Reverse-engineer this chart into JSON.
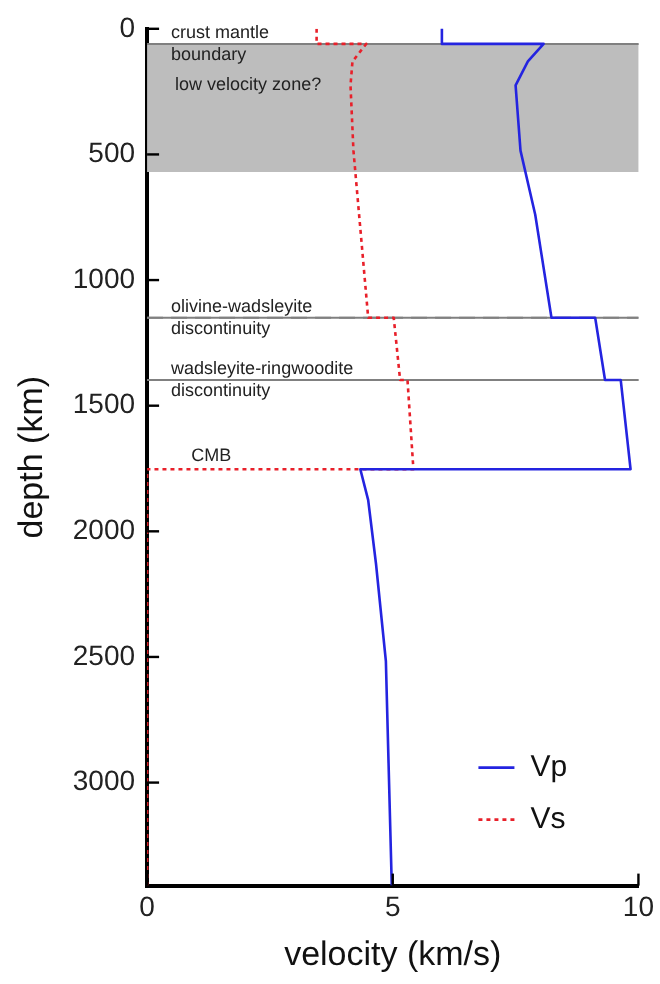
{
  "chart_data": {
    "type": "line",
    "xlabel": "velocity (km/s)",
    "ylabel": "depth (km)",
    "xlim": [
      0,
      10
    ],
    "xticks": [
      0,
      5,
      10
    ],
    "ylim": [
      3410,
      0
    ],
    "yticks": [
      0,
      500,
      1000,
      1500,
      2000,
      2500,
      3000
    ],
    "grid": false,
    "legend": "bottom right",
    "marker": "none",
    "series": [
      {
        "name": "Vp",
        "color": "#2424e0",
        "line_style": "solid",
        "x": [
          6.0,
          6.0,
          8.07,
          7.75,
          7.5,
          7.6,
          7.9,
          8.23,
          9.12,
          9.32,
          9.64,
          9.84,
          4.34,
          4.5,
          4.66,
          4.86,
          4.98
        ],
        "values": [
          0,
          60,
          60,
          130,
          225,
          485,
          740,
          1150,
          1150,
          1398,
          1398,
          1753,
          1753,
          1876,
          2131,
          2517,
          3410
        ]
      },
      {
        "name": "Vs",
        "color": "#e8202a",
        "line_style": "dotted",
        "x": [
          3.45,
          3.45,
          4.46,
          4.18,
          4.14,
          4.2,
          4.5,
          5.02,
          5.15,
          5.3,
          5.42,
          0,
          0
        ],
        "values": [
          0,
          60,
          60,
          130,
          225,
          485,
          1150,
          1150,
          1398,
          1398,
          1753,
          1753,
          3410
        ]
      }
    ],
    "bands": [
      {
        "axis": "y",
        "from": 60,
        "to": 570,
        "label": "low velocity zone?",
        "color": "#bdbdbd"
      }
    ],
    "ref_lines": [
      {
        "axis": "y",
        "value": 60,
        "label": "crust mantle\nboundary",
        "color": "#808080",
        "line_style": "dashed"
      },
      {
        "axis": "y",
        "value": 1150,
        "label": "olivine-wadsleyite\ndiscontinuity",
        "color": "#808080",
        "line_style": "dashed"
      },
      {
        "axis": "y",
        "value": 1398,
        "label": "wadsleyite-ringwoodite\ndiscontinuity",
        "color": "#808080",
        "line_style": "dashed"
      }
    ],
    "annotations": [
      {
        "text": "CMB",
        "x": 0.9,
        "y": 1753
      }
    ]
  }
}
